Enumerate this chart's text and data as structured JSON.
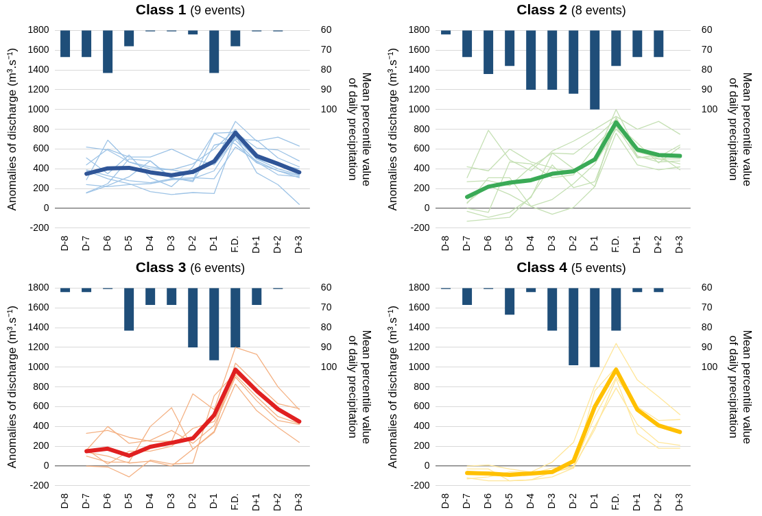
{
  "chart_data": [
    {
      "type": "line",
      "title": "Class 1",
      "subtitle": "(9 events)",
      "categories": [
        "D-8",
        "D-7",
        "D-6",
        "D-5",
        "D-4",
        "D-3",
        "D-2",
        "D-1",
        "F.D.",
        "D+1",
        "D+2",
        "D+3"
      ],
      "ylabel": "Anomalies of discharge (m³.s⁻¹)",
      "y2label": "Mean percentile value of daily precipitation",
      "ylim": [
        -200,
        1800
      ],
      "yticks": [
        -200,
        0,
        200,
        400,
        600,
        800,
        1000,
        1200,
        1400,
        1600,
        1800
      ],
      "y2lim": [
        160,
        60
      ],
      "y2ticks": [
        60,
        70,
        80,
        90,
        100
      ],
      "grid": "y",
      "legend": false,
      "marker": "none",
      "series": [
        {
          "type": "bar",
          "axis": "y2",
          "color": "#1f4e79",
          "values": [
            73.5,
            73.5,
            81.5,
            68,
            60.5,
            60.5,
            62,
            81.5,
            68,
            60.5,
            60.5,
            null
          ]
        },
        {
          "color": "#9dc3e6",
          "values": [
            null,
            620,
            590,
            470,
            400,
            390,
            350,
            460,
            880,
            680,
            720,
            630
          ]
        },
        {
          "color": "#9dc3e6",
          "values": [
            null,
            510,
            350,
            540,
            310,
            220,
            420,
            760,
            770,
            610,
            590,
            480
          ]
        },
        {
          "color": "#9dc3e6",
          "values": [
            null,
            440,
            600,
            520,
            520,
            600,
            500,
            440,
            700,
            690,
            510,
            420
          ]
        },
        {
          "color": "#9dc3e6",
          "values": [
            null,
            290,
            690,
            470,
            420,
            390,
            450,
            600,
            800,
            500,
            440,
            400
          ]
        },
        {
          "color": "#9dc3e6",
          "values": [
            null,
            160,
            250,
            500,
            480,
            300,
            310,
            300,
            620,
            480,
            380,
            330
          ]
        },
        {
          "color": "#9dc3e6",
          "values": [
            null,
            155,
            230,
            320,
            480,
            310,
            270,
            640,
            690,
            470,
            340,
            320
          ]
        },
        {
          "color": "#9dc3e6",
          "values": [
            null,
            240,
            220,
            240,
            250,
            290,
            300,
            380,
            720,
            500,
            400,
            340
          ]
        },
        {
          "color": "#9dc3e6",
          "values": [
            null,
            380,
            300,
            250,
            170,
            140,
            160,
            150,
            740,
            360,
            240,
            40
          ]
        },
        {
          "color": "#9dc3e6",
          "values": [
            null,
            390,
            330,
            280,
            260,
            300,
            280,
            760,
            650,
            460,
            380,
            310
          ]
        },
        {
          "color": "#2f5597",
          "values": [
            null,
            350,
            405,
            410,
            365,
            335,
            370,
            475,
            765,
            530,
            450,
            365
          ]
        }
      ]
    },
    {
      "type": "line",
      "title": "Class 2",
      "subtitle": "(8 events)",
      "categories": [
        "D-8",
        "D-7",
        "D-6",
        "D-5",
        "D-4",
        "D-3",
        "D-2",
        "D-1",
        "F.D.",
        "D+1",
        "D+2",
        "D+3"
      ],
      "ylabel": "Anomalies of discharge (m³.s⁻¹)",
      "y2label": "Mean percentile value of daily precipitation",
      "ylim": [
        -200,
        1800
      ],
      "yticks": [
        -200,
        0,
        200,
        400,
        600,
        800,
        1000,
        1200,
        1400,
        1600,
        1800
      ],
      "y2lim": [
        160,
        60
      ],
      "y2ticks": [
        60,
        70,
        80,
        90,
        100
      ],
      "grid": "y",
      "legend": false,
      "marker": "none",
      "series": [
        {
          "type": "bar",
          "axis": "y2",
          "color": "#1f4e79",
          "values": [
            62,
            73.5,
            82,
            78,
            90,
            90,
            92,
            100,
            78,
            73.5,
            73.5,
            null
          ]
        },
        {
          "color": "#c5e0b4",
          "values": [
            null,
            310,
            790,
            490,
            380,
            580,
            680,
            800,
            930,
            800,
            880,
            750
          ]
        },
        {
          "color": "#c5e0b4",
          "values": [
            null,
            420,
            380,
            600,
            470,
            410,
            360,
            500,
            1000,
            570,
            520,
            640
          ]
        },
        {
          "color": "#c5e0b4",
          "values": [
            null,
            270,
            280,
            230,
            420,
            560,
            550,
            710,
            900,
            520,
            500,
            500
          ]
        },
        {
          "color": "#c5e0b4",
          "values": [
            null,
            50,
            310,
            310,
            20,
            90,
            250,
            450,
            800,
            600,
            500,
            450
          ]
        },
        {
          "color": "#c5e0b4",
          "values": [
            null,
            60,
            230,
            140,
            20,
            -60,
            10,
            220,
            760,
            440,
            390,
            420
          ]
        },
        {
          "color": "#c5e0b4",
          "values": [
            null,
            -30,
            -90,
            -40,
            110,
            560,
            400,
            220,
            920,
            530,
            470,
            480
          ]
        },
        {
          "color": "#c5e0b4",
          "values": [
            null,
            -130,
            -110,
            -90,
            120,
            440,
            210,
            270,
            830,
            510,
            540,
            390
          ]
        },
        {
          "color": "#c5e0b4",
          "values": [
            null,
            0,
            -40,
            470,
            450,
            310,
            340,
            620,
            860,
            660,
            460,
            620
          ]
        },
        {
          "color": "#3aaa56",
          "values": [
            null,
            115,
            220,
            260,
            285,
            350,
            375,
            495,
            870,
            595,
            540,
            530
          ]
        }
      ]
    },
    {
      "type": "line",
      "title": "Class 3",
      "subtitle": "(6 events)",
      "categories": [
        "D-8",
        "D-7",
        "D-6",
        "D-5",
        "D-4",
        "D-3",
        "D-2",
        "D-1",
        "F.D.",
        "D+1",
        "D+2",
        "D+3"
      ],
      "ylabel": "Anomalies of discharge (m³.s⁻¹)",
      "y2label": "Mean percentile value of daily precipitation",
      "ylim": [
        -200,
        1800
      ],
      "yticks": [
        -200,
        0,
        200,
        400,
        600,
        800,
        1000,
        1200,
        1400,
        1600,
        1800
      ],
      "y2lim": [
        160,
        60
      ],
      "y2ticks": [
        60,
        70,
        80,
        90,
        100
      ],
      "grid": "y",
      "legend": false,
      "marker": "none",
      "series": [
        {
          "type": "bar",
          "axis": "y2",
          "color": "#1f4e79",
          "values": [
            62,
            62,
            60.5,
            81.5,
            68.5,
            68.5,
            90,
            96.5,
            90,
            68.5,
            60.5,
            null
          ]
        },
        {
          "color": "#f4b183",
          "values": [
            null,
            330,
            360,
            290,
            250,
            250,
            730,
            570,
            1200,
            1130,
            800,
            570
          ]
        },
        {
          "color": "#f4b183",
          "values": [
            null,
            100,
            40,
            40,
            400,
            590,
            170,
            350,
            1040,
            830,
            630,
            580
          ]
        },
        {
          "color": "#f4b183",
          "values": [
            null,
            0,
            -10,
            -110,
            60,
            20,
            30,
            710,
            940,
            750,
            560,
            450
          ]
        },
        {
          "color": "#f4b183",
          "values": [
            null,
            160,
            400,
            230,
            260,
            360,
            230,
            410,
            900,
            660,
            460,
            420
          ]
        },
        {
          "color": "#f4b183",
          "values": [
            null,
            140,
            100,
            30,
            50,
            0,
            170,
            340,
            830,
            560,
            390,
            240
          ]
        },
        {
          "color": "#f4b183",
          "values": [
            null,
            170,
            20,
            150,
            150,
            200,
            380,
            450,
            920,
            700,
            500,
            430
          ]
        },
        {
          "color": "#e02020",
          "values": [
            null,
            150,
            175,
            105,
            195,
            235,
            280,
            515,
            975,
            760,
            575,
            450
          ]
        }
      ]
    },
    {
      "type": "line",
      "title": "Class 4",
      "subtitle": "(5 events)",
      "categories": [
        "D-8",
        "D-7",
        "D-6",
        "D-5",
        "D-4",
        "D-3",
        "D-2",
        "D-1",
        "F.D.",
        "D+1",
        "D+2",
        "D+3"
      ],
      "ylabel": "Anomalies of discharge (m³.s⁻¹)",
      "y2label": "Mean percentile value of daily precipitation",
      "ylim": [
        -200,
        1800
      ],
      "yticks": [
        -200,
        0,
        200,
        400,
        600,
        800,
        1000,
        1200,
        1400,
        1600,
        1800
      ],
      "y2lim": [
        160,
        60
      ],
      "y2ticks": [
        60,
        70,
        80,
        90,
        100
      ],
      "grid": "y",
      "legend": false,
      "marker": "none",
      "series": [
        {
          "type": "bar",
          "axis": "y2",
          "color": "#1f4e79",
          "values": [
            60.5,
            68.5,
            60.5,
            73.5,
            62,
            81.5,
            99,
            100,
            81.5,
            62,
            62,
            null
          ]
        },
        {
          "color": "#ffe699",
          "values": [
            null,
            0,
            10,
            -30,
            -60,
            40,
            240,
            810,
            1240,
            870,
            700,
            520
          ]
        },
        {
          "color": "#ffe699",
          "values": [
            null,
            -30,
            -30,
            -150,
            -140,
            -110,
            -20,
            760,
            1000,
            600,
            460,
            470
          ]
        },
        {
          "color": "#ffe699",
          "values": [
            null,
            -130,
            -110,
            -60,
            -60,
            -70,
            0,
            500,
            900,
            580,
            410,
            360
          ]
        },
        {
          "color": "#ffe699",
          "values": [
            null,
            -120,
            -150,
            -150,
            -140,
            -60,
            -20,
            400,
            790,
            420,
            240,
            210
          ]
        },
        {
          "color": "#ffe699",
          "values": [
            null,
            -50,
            -70,
            -90,
            -80,
            -20,
            -10,
            370,
            880,
            330,
            180,
            180
          ]
        },
        {
          "color": "#ffc000",
          "values": [
            null,
            -70,
            -75,
            -90,
            -75,
            -60,
            50,
            600,
            975,
            570,
            410,
            345
          ]
        }
      ]
    }
  ]
}
